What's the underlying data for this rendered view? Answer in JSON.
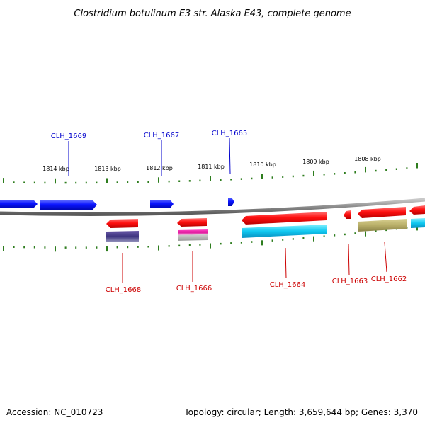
{
  "title": "Clostridium botulinum E3 str. Alaska E43, complete genome",
  "footer": {
    "accession": "Accession: NC_010723",
    "summary": "Topology: circular; Length: 3,659,644 bp; Genes: 3,370"
  },
  "colors": {
    "backbone": "#8a8a8a",
    "tick": "#2e7d1e",
    "forward_label": "#0000cc",
    "reverse_label": "#cc0000",
    "forward_gene": "#0a14ff",
    "reverse_gene": "#ff1010"
  },
  "ticks": [
    "1814 kbp",
    "1813 kbp",
    "1812 kbp",
    "1811 kbp",
    "1810 kbp",
    "1809 kbp",
    "1808 kbp"
  ],
  "forward_labels": [
    "CLH_1669",
    "CLH_1667",
    "CLH_1665"
  ],
  "reverse_labels": [
    "CLH_1668",
    "CLH_1666",
    "CLH_1664",
    "CLH_1663",
    "CLH_1662"
  ]
}
